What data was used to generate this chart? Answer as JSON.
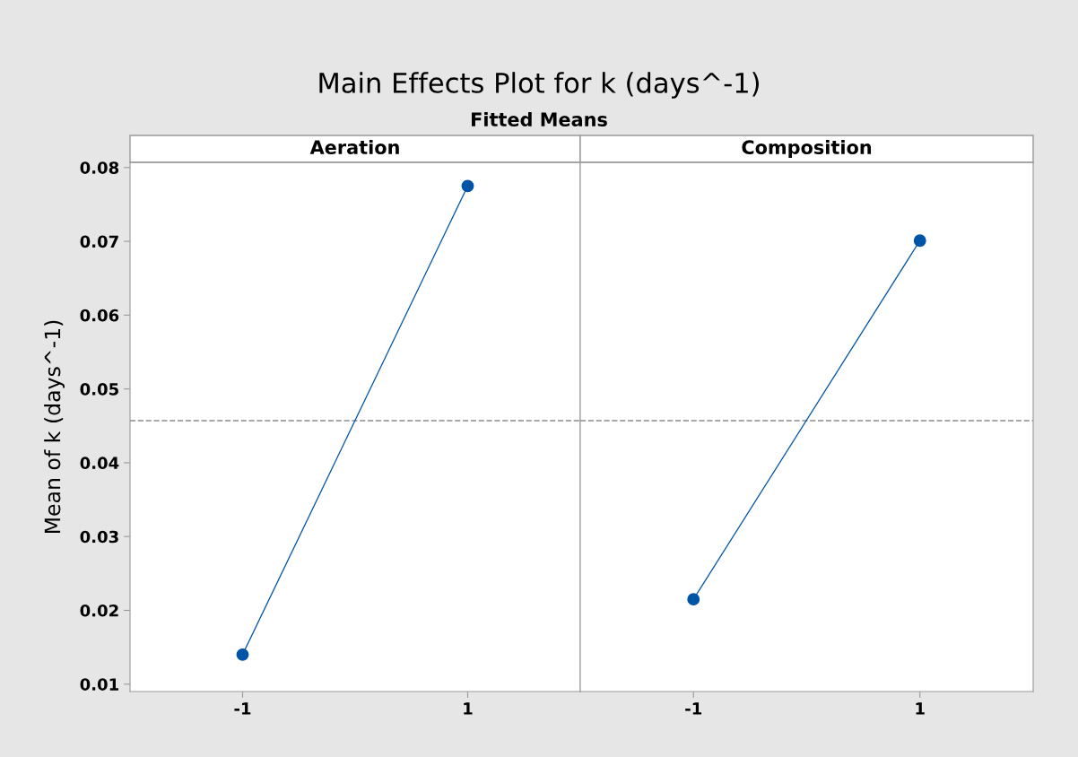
{
  "chart_data": [
    {
      "type": "line",
      "title": "Main Effects Plot for k (days^-1)",
      "subtitle": "Fitted Means",
      "xlabel": "Aeration",
      "ylabel": "Mean of k (days^-1)",
      "categories": [
        "-1",
        "1"
      ],
      "series": [
        {
          "color": "#0054a6",
          "values": [
            0.014,
            0.0775
          ]
        }
      ],
      "ylim": [
        0.009,
        0.0807
      ],
      "yticks": [
        0.01,
        0.02,
        0.03,
        0.04,
        0.05,
        0.06,
        0.07,
        0.08
      ],
      "marker": "circle",
      "line_style": "solid",
      "grid": false,
      "ref_lines": [
        {
          "axis": "y",
          "value": 0.0457,
          "color": "#8c8c8c",
          "line_style": "dashed"
        }
      ]
    },
    {
      "type": "line",
      "xlabel": "Composition",
      "categories": [
        "-1",
        "1"
      ],
      "series": [
        {
          "color": "#0054a6",
          "values": [
            0.0215,
            0.0701
          ]
        }
      ],
      "ylim": [
        0.009,
        0.0807
      ],
      "yticks": [
        0.01,
        0.02,
        0.03,
        0.04,
        0.05,
        0.06,
        0.07,
        0.08
      ],
      "tick_labels": "x",
      "marker": "circle",
      "line_style": "solid",
      "grid": false,
      "ref_lines": [
        {
          "axis": "y",
          "value": 0.0457,
          "color": "#8c8c8c",
          "line_style": "dashed"
        }
      ]
    }
  ]
}
